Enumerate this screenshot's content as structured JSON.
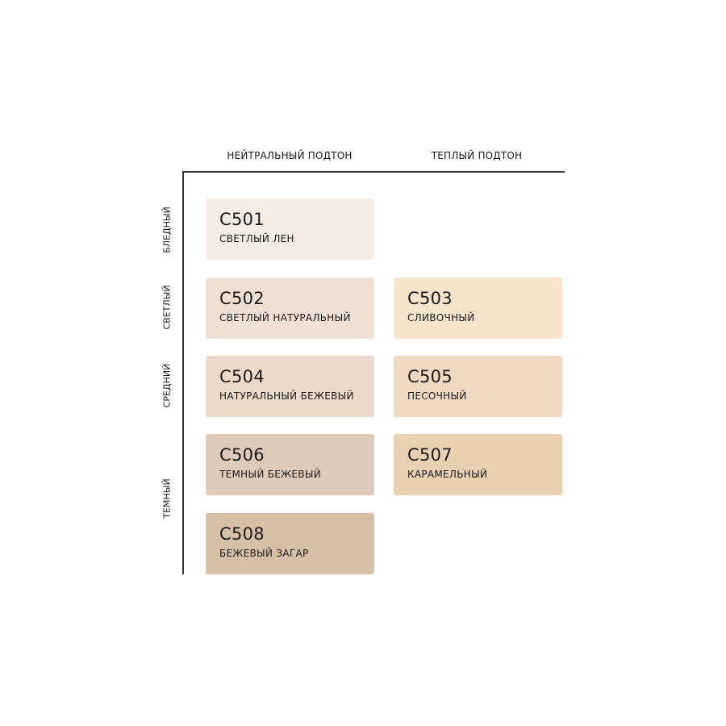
{
  "columns": [
    "НЕЙТРАЛЬНЫЙ ПОДТОН",
    "ТЕПЛЫЙ ПОДТОН"
  ],
  "rows": [
    "БЛЕДНЫЙ",
    "СВЕТЛЫЙ",
    "СРЕДНИЙ",
    "ТЕМНЫЙ"
  ],
  "shades": [
    {
      "code": "C501",
      "name": "СВЕТЛЫЙ ЛЕН",
      "color": "#f4ece5"
    },
    {
      "code": "C502",
      "name": "СВЕТЛЫЙ НАТУРАЛЬНЫЙ",
      "color": "#f0e0d3"
    },
    {
      "code": "C503",
      "name": "СЛИВОЧНЫЙ",
      "color": "#f7e5cb"
    },
    {
      "code": "C504",
      "name": "НАТУРАЛЬНЫЙ БЕЖЕВЫЙ",
      "color": "#ecd9ca"
    },
    {
      "code": "C505",
      "name": "ПЕСОЧНЫЙ",
      "color": "#f0d9c0"
    },
    {
      "code": "C506",
      "name": "ТЕМНЫЙ БЕЖЕВЫЙ",
      "color": "#dfcab9"
    },
    {
      "code": "C507",
      "name": "КАРАМЕЛЬНЫЙ",
      "color": "#e8d0b0"
    },
    {
      "code": "C508",
      "name": "БЕЖЕВЫЙ ЗАГАР",
      "color": "#d7bfa5"
    }
  ]
}
